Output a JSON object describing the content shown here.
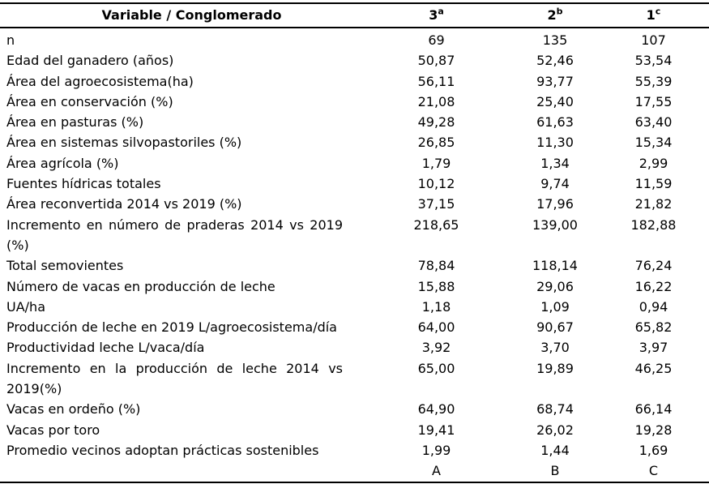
{
  "page": {
    "background": "#ffffff",
    "text_color": "#000000"
  },
  "table": {
    "header": {
      "variable_label": "Variable / Conglomerado",
      "columns": [
        {
          "num": "3",
          "sup": "a"
        },
        {
          "num": "2",
          "sup": "b"
        },
        {
          "num": "1",
          "sup": "c"
        }
      ]
    },
    "rows": [
      {
        "label": "n",
        "v3": "69",
        "v2": "135",
        "v1": "107"
      },
      {
        "label": "Edad del ganadero (años)",
        "v3": "50,87",
        "v2": "52,46",
        "v1": "53,54"
      },
      {
        "label": "Área del agroecosistema(ha)",
        "v3": "56,11",
        "v2": "93,77",
        "v1": "55,39"
      },
      {
        "label": "Área en conservación (%)",
        "v3": "21,08",
        "v2": "25,40",
        "v1": "17,55"
      },
      {
        "label": "Área en pasturas (%)",
        "v3": "49,28",
        "v2": "61,63",
        "v1": "63,40"
      },
      {
        "label": "Área en sistemas silvopastoriles (%)",
        "v3": "26,85",
        "v2": "11,30",
        "v1": "15,34"
      },
      {
        "label": "Área agrícola (%)",
        "v3": "1,79",
        "v2": "1,34",
        "v1": "2,99"
      },
      {
        "label": "Fuentes hídricas totales",
        "v3": "10,12",
        "v2": "9,74",
        "v1": "11,59"
      },
      {
        "label": "Área reconvertida 2014 vs 2019 (%)",
        "v3": "37,15",
        "v2": "17,96",
        "v1": "21,82"
      },
      {
        "label": "Incremento en número de praderas 2014 vs 2019 (%)",
        "v3": "218,65",
        "v2": "139,00",
        "v1": "182,88"
      },
      {
        "label": "Total semovientes",
        "v3": "78,84",
        "v2": "118,14",
        "v1": "76,24"
      },
      {
        "label": "Número de vacas en producción de leche",
        "v3": "15,88",
        "v2": "29,06",
        "v1": "16,22"
      },
      {
        "label": "UA/ha",
        "v3": "1,18",
        "v2": "1,09",
        "v1": "0,94"
      },
      {
        "label": "Producción de leche en 2019 L/agroecosistema/día",
        "v3": "64,00",
        "v2": "90,67",
        "v1": "65,82"
      },
      {
        "label": "Productividad leche L/vaca/día",
        "v3": "3,92",
        "v2": "3,70",
        "v1": "3,97"
      },
      {
        "label": "Incremento en la producción de leche 2014 vs 2019(%)",
        "v3": "65,00",
        "v2": "19,89",
        "v1": "46,25"
      },
      {
        "label": "Vacas en ordeño (%)",
        "v3": "64,90",
        "v2": "68,74",
        "v1": "66,14"
      },
      {
        "label": "Vacas por toro",
        "v3": "19,41",
        "v2": "26,02",
        "v1": "19,28"
      },
      {
        "label": "Promedio vecinos adoptan prácticas sostenibles",
        "v3": "1,99",
        "v2": "1,44",
        "v1": "1,69"
      }
    ],
    "footer_letters": {
      "c3": "A",
      "c2": "B",
      "c1": "C"
    }
  }
}
